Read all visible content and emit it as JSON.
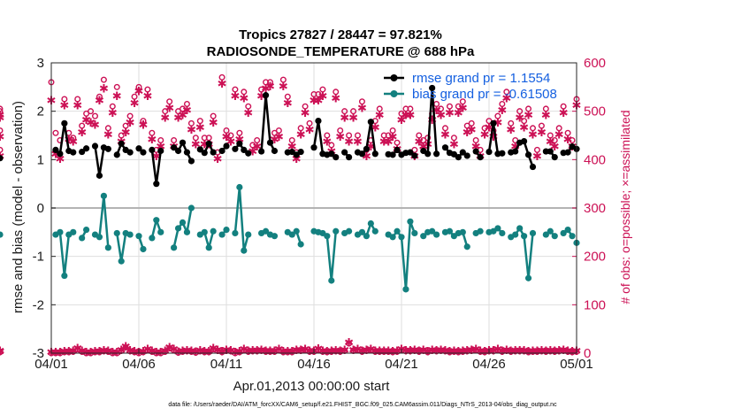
{
  "colors": {
    "rmse": "#000000",
    "bias": "#13807f",
    "obs": "#cc1155",
    "legend_text": "#1560e0",
    "zero_line": "#b3b3b3"
  },
  "chart_data": {
    "type": "line",
    "title_line1": "Tropics 27827 / 28447 = 97.821%",
    "title_line2": "RADIOSONDE_TEMPERATURE @ 688 hPa",
    "xlabel": "Apr.01,2013 00:00:00 start",
    "ylabel_left": "rmse and bias (model - observation)",
    "ylabel_right": "# of obs: o=possible; ×=assimilated",
    "footer": "data file: /Users/raeder/DAI/ATM_forcXX/CAM6_setup/f.e21.FHIST_BGC.f09_025.CAM6assim.011/Diags_NTrS_2013-04/obs_diag_output.nc",
    "xlim": [
      0,
      30
    ],
    "ylim_left": [
      -3,
      3
    ],
    "ylim_right": [
      0,
      600
    ],
    "x_ticks": [
      0,
      5,
      10,
      15,
      20,
      25,
      30
    ],
    "x_tick_labels": [
      "04/01",
      "04/06",
      "04/11",
      "04/16",
      "04/21",
      "04/26",
      "05/01"
    ],
    "y_ticks_left": [
      -3,
      -2,
      -1,
      0,
      1,
      2,
      3
    ],
    "y_tick_labels_left": [
      "-3",
      "-2",
      "-1",
      "0",
      "1",
      "2",
      "3"
    ],
    "y_ticks_right": [
      0,
      100,
      200,
      300,
      400,
      500,
      600
    ],
    "y_tick_labels_right": [
      "0",
      "100",
      "200",
      "300",
      "400",
      "500",
      "600"
    ],
    "legend": [
      {
        "name": "rmse",
        "label": "rmse grand pr = 1.1554"
      },
      {
        "name": "bias",
        "label": "bias grand pr = -0.61508"
      }
    ],
    "x": [
      0.0,
      0.25,
      0.5,
      0.75,
      1.0,
      1.25,
      1.5,
      1.75,
      2.0,
      2.25,
      2.5,
      2.75,
      3.0,
      3.25,
      3.5,
      3.75,
      4.0,
      4.25,
      4.5,
      4.75,
      5.0,
      5.25,
      5.5,
      5.75,
      6.0,
      6.25,
      6.5,
      6.75,
      7.0,
      7.25,
      7.5,
      7.75,
      8.0,
      8.25,
      8.5,
      8.75,
      9.0,
      9.25,
      9.5,
      9.75,
      10.0,
      10.25,
      10.5,
      10.75,
      11.0,
      11.25,
      11.5,
      11.75,
      12.0,
      12.25,
      12.5,
      12.75,
      13.0,
      13.25,
      13.5,
      13.75,
      14.0,
      14.25,
      14.5,
      14.75,
      15.0,
      15.25,
      15.5,
      15.75,
      16.0,
      16.25,
      16.5,
      16.75,
      17.0,
      17.25,
      17.5,
      17.75,
      18.0,
      18.25,
      18.5,
      18.75,
      19.0,
      19.25,
      19.5,
      19.75,
      20.0,
      20.25,
      20.5,
      20.75,
      21.0,
      21.25,
      21.5,
      21.75,
      22.0,
      22.25,
      22.5,
      22.75,
      23.0,
      23.25,
      23.5,
      23.75,
      24.0,
      24.25,
      24.5,
      24.75,
      25.0,
      25.25,
      25.5,
      25.75,
      26.0,
      26.25,
      26.5,
      26.75,
      27.0,
      27.25,
      27.5,
      27.75,
      28.0,
      28.25,
      28.5,
      28.75,
      29.0,
      29.25,
      29.5,
      29.75,
      30.0
    ],
    "rmse_segments": [
      {
        "i": [
          1,
          2,
          3,
          4,
          5
        ]
      },
      {
        "i": [
          7,
          8
        ]
      },
      {
        "i": [
          10,
          11,
          12,
          13
        ]
      },
      {
        "i": [
          15,
          16,
          17,
          18
        ]
      },
      {
        "i": [
          20,
          21
        ]
      },
      {
        "i": [
          23,
          24,
          25
        ]
      },
      {
        "i": [
          28,
          29,
          30,
          31,
          32
        ]
      },
      {
        "i": [
          34,
          35,
          36,
          37
        ]
      },
      {
        "i": [
          39,
          40
        ]
      },
      {
        "i": [
          42,
          43,
          44,
          45
        ]
      },
      {
        "i": [
          48,
          49,
          50,
          51
        ]
      },
      {
        "i": [
          54,
          55,
          56,
          57
        ]
      },
      {
        "i": [
          60,
          61,
          62,
          63,
          64,
          65
        ]
      },
      {
        "i": [
          67,
          68
        ]
      },
      {
        "i": [
          70,
          71,
          72,
          73,
          74
        ]
      },
      {
        "i": [
          77,
          78,
          79,
          80,
          81,
          82,
          83
        ]
      },
      {
        "i": [
          85,
          86,
          87,
          88
        ]
      },
      {
        "i": [
          90,
          91,
          92,
          93,
          94,
          95
        ]
      },
      {
        "i": [
          97,
          98
        ]
      },
      {
        "i": [
          100,
          101,
          102,
          103
        ]
      },
      {
        "i": [
          105,
          106,
          107,
          108,
          109,
          110
        ]
      },
      {
        "i": [
          113,
          114,
          115
        ]
      },
      {
        "i": [
          117,
          118,
          119
        ]
      }
    ],
    "rmse_values": [
      null,
      1.2,
      1.12,
      1.75,
      1.18,
      1.15,
      null,
      1.16,
      1.23,
      null,
      1.28,
      0.67,
      1.25,
      1.22,
      null,
      1.1,
      1.33,
      1.2,
      1.15,
      null,
      1.23,
      1.15,
      null,
      1.2,
      0.5,
      1.18,
      null,
      null,
      1.25,
      1.18,
      1.35,
      1.15,
      0.97,
      null,
      1.21,
      1.14,
      1.33,
      1.15,
      null,
      1.18,
      1.28,
      null,
      1.22,
      1.33,
      1.2,
      1.13,
      null,
      null,
      1.17,
      2.33,
      1.35,
      1.18,
      null,
      null,
      1.15,
      1.16,
      1.1,
      1.16,
      null,
      null,
      1.25,
      1.8,
      1.12,
      1.1,
      1.12,
      1.05,
      null,
      1.15,
      1.05,
      null,
      1.15,
      1.12,
      1.22,
      1.78,
      1.12,
      null,
      null,
      1.11,
      1.1,
      1.2,
      1.1,
      1.14,
      1.15,
      1.08,
      null,
      1.18,
      1.12,
      2.48,
      1.12,
      null,
      1.25,
      1.14,
      1.11,
      1.05,
      1.15,
      1.08,
      null,
      1.17,
      1.05,
      null,
      1.16,
      1.75,
      1.12,
      1.13,
      null,
      1.15,
      1.17,
      1.35,
      1.38,
      1.1,
      0.85,
      null,
      null,
      1.17,
      1.17,
      1.05,
      null,
      1.14,
      1.15,
      1.27,
      1.22,
      null,
      1.03,
      null
    ],
    "bias_values": [
      null,
      -0.55,
      -0.5,
      -1.4,
      -0.55,
      -0.5,
      null,
      -0.62,
      -0.45,
      null,
      -0.55,
      -0.6,
      0.25,
      -0.82,
      null,
      -0.52,
      -1.1,
      -0.52,
      -0.55,
      null,
      -0.58,
      -0.85,
      null,
      -0.62,
      -0.25,
      -0.5,
      null,
      null,
      -0.82,
      -0.42,
      -0.3,
      -0.5,
      0.0,
      null,
      -0.55,
      -0.5,
      -0.82,
      -0.48,
      null,
      -0.55,
      -0.45,
      null,
      -0.52,
      0.43,
      -0.88,
      -0.55,
      null,
      null,
      -0.52,
      -0.48,
      -0.55,
      -0.58,
      null,
      null,
      -0.5,
      -0.55,
      -0.48,
      -0.75,
      null,
      null,
      -0.48,
      -0.5,
      -0.52,
      -0.58,
      -1.5,
      -0.48,
      null,
      -0.52,
      -0.48,
      null,
      -0.55,
      -0.5,
      -0.58,
      -0.32,
      -0.48,
      null,
      null,
      -0.55,
      -0.6,
      -0.48,
      -0.6,
      -1.68,
      -0.28,
      -0.52,
      null,
      -0.58,
      -0.5,
      -0.48,
      -0.55,
      null,
      -0.5,
      -0.48,
      -0.58,
      -0.52,
      -0.5,
      -0.8,
      null,
      -0.52,
      -0.48,
      null,
      -0.5,
      -0.48,
      -0.42,
      -0.52,
      null,
      -0.6,
      -0.55,
      -0.42,
      -0.58,
      -1.45,
      -0.52,
      null,
      null,
      -0.55,
      -0.48,
      -0.58,
      null,
      -0.52,
      -0.45,
      -0.58,
      -0.72,
      null,
      -0.55,
      null
    ],
    "obs_possible": [
      560,
      455,
      440,
      525,
      455,
      445,
      525,
      470,
      495,
      500,
      490,
      530,
      565,
      465,
      510,
      550,
      450,
      470,
      490,
      530,
      550,
      480,
      545,
      455,
      420,
      440,
      500,
      520,
      440,
      500,
      505,
      515,
      475,
      445,
      480,
      445,
      445,
      490,
      415,
      570,
      460,
      450,
      545,
      455,
      540,
      510,
      430,
      440,
      545,
      560,
      560,
      455,
      460,
      565,
      530,
      440,
      415,
      465,
      510,
      475,
      535,
      535,
      545,
      450,
      430,
      540,
      460,
      500,
      450,
      500,
      450,
      520,
      420,
      440,
      480,
      505,
      450,
      450,
      460,
      435,
      495,
      505,
      505,
      420,
      450,
      440,
      445,
      495,
      515,
      505,
      465,
      510,
      445,
      510,
      520,
      470,
      475,
      440,
      420,
      465,
      480,
      460,
      490,
      515,
      540,
      475,
      440,
      500,
      480,
      505,
      465,
      420,
      470,
      505,
      450,
      440,
      465,
      510,
      455,
      440,
      525,
      460,
      500,
      420,
      505
    ],
    "obs_assimilated": [
      520,
      410,
      400,
      510,
      440,
      435,
      510,
      455,
      480,
      475,
      470,
      520,
      545,
      450,
      495,
      530,
      435,
      455,
      475,
      515,
      540,
      470,
      530,
      440,
      405,
      425,
      485,
      505,
      425,
      485,
      490,
      500,
      460,
      430,
      465,
      430,
      430,
      475,
      400,
      555,
      445,
      435,
      530,
      440,
      525,
      495,
      415,
      425,
      530,
      545,
      550,
      440,
      445,
      550,
      515,
      425,
      400,
      450,
      495,
      460,
      520,
      520,
      530,
      435,
      415,
      525,
      445,
      485,
      435,
      485,
      435,
      505,
      405,
      425,
      465,
      490,
      435,
      435,
      445,
      420,
      480,
      490,
      490,
      405,
      435,
      425,
      430,
      480,
      500,
      490,
      450,
      495,
      430,
      495,
      505,
      455,
      460,
      425,
      405,
      450,
      465,
      445,
      475,
      500,
      525,
      460,
      425,
      485,
      465,
      490,
      450,
      405,
      455,
      490,
      435,
      425,
      450,
      495,
      440,
      425,
      510,
      445,
      485,
      405,
      490
    ],
    "bottom_obs": [
      0,
      0,
      0,
      2,
      2,
      3,
      8,
      3,
      0,
      0,
      2,
      2,
      4,
      3,
      0,
      0,
      5,
      12,
      4,
      2,
      0,
      2,
      6,
      3,
      0,
      0,
      3,
      10,
      6,
      1,
      3,
      4,
      3,
      1,
      4,
      2,
      2,
      8,
      5,
      2,
      5,
      4,
      0,
      2,
      6,
      3,
      4,
      4,
      5,
      3,
      3,
      3,
      6,
      2,
      2,
      2,
      5,
      5,
      6,
      3,
      3,
      7,
      3,
      2,
      3,
      4,
      3,
      5,
      20,
      5,
      6,
      3,
      5,
      6,
      3,
      3,
      3,
      3,
      2,
      3,
      6,
      4,
      4,
      5,
      3,
      5,
      2,
      5,
      4,
      5,
      4,
      2,
      3,
      2,
      3,
      4,
      5,
      6,
      3,
      2,
      4,
      4,
      6,
      3,
      5,
      3,
      4,
      4,
      4,
      2,
      3,
      3,
      4,
      3,
      4,
      3,
      4,
      5,
      3,
      2,
      3,
      2,
      3,
      2,
      3
    ]
  }
}
